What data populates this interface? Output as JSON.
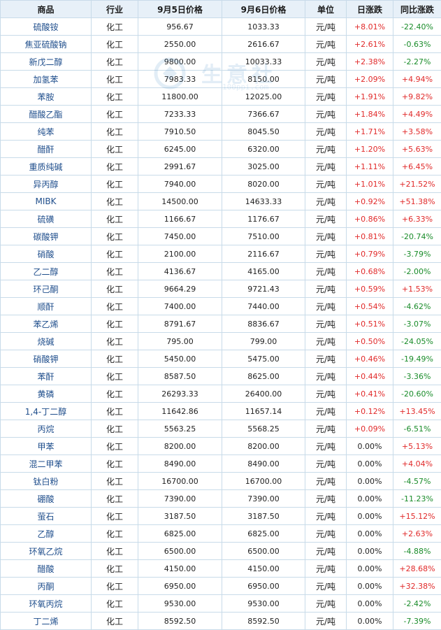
{
  "headers": [
    "商品",
    "行业",
    "9月5日价格",
    "9月6日价格",
    "单位",
    "日涨跌",
    "同比涨跌"
  ],
  "watermark": {
    "text": "生意社",
    "url": "100ppi.com"
  },
  "colors": {
    "up": "#e12a2a",
    "down": "#1a8c2a",
    "name": "#1f4e8c",
    "header_bg": "#e7f0f8"
  },
  "rows": [
    {
      "name": "硫酸铵",
      "industry": "化工",
      "p1": "956.67",
      "p2": "1033.33",
      "unit": "元/吨",
      "day": "+8.01%",
      "yoy": "-22.40%"
    },
    {
      "name": "焦亚硫酸钠",
      "industry": "化工",
      "p1": "2550.00",
      "p2": "2616.67",
      "unit": "元/吨",
      "day": "+2.61%",
      "yoy": "-0.63%"
    },
    {
      "name": "新戊二醇",
      "industry": "化工",
      "p1": "9800.00",
      "p2": "10033.33",
      "unit": "元/吨",
      "day": "+2.38%",
      "yoy": "-2.27%"
    },
    {
      "name": "加氢苯",
      "industry": "化工",
      "p1": "7983.33",
      "p2": "8150.00",
      "unit": "元/吨",
      "day": "+2.09%",
      "yoy": "+4.94%"
    },
    {
      "name": "苯胺",
      "industry": "化工",
      "p1": "11800.00",
      "p2": "12025.00",
      "unit": "元/吨",
      "day": "+1.91%",
      "yoy": "+9.82%"
    },
    {
      "name": "醋酸乙酯",
      "industry": "化工",
      "p1": "7233.33",
      "p2": "7366.67",
      "unit": "元/吨",
      "day": "+1.84%",
      "yoy": "+4.49%"
    },
    {
      "name": "纯苯",
      "industry": "化工",
      "p1": "7910.50",
      "p2": "8045.50",
      "unit": "元/吨",
      "day": "+1.71%",
      "yoy": "+3.58%"
    },
    {
      "name": "醋酐",
      "industry": "化工",
      "p1": "6245.00",
      "p2": "6320.00",
      "unit": "元/吨",
      "day": "+1.20%",
      "yoy": "+5.63%"
    },
    {
      "name": "重质纯碱",
      "industry": "化工",
      "p1": "2991.67",
      "p2": "3025.00",
      "unit": "元/吨",
      "day": "+1.11%",
      "yoy": "+6.45%"
    },
    {
      "name": "异丙醇",
      "industry": "化工",
      "p1": "7940.00",
      "p2": "8020.00",
      "unit": "元/吨",
      "day": "+1.01%",
      "yoy": "+21.52%"
    },
    {
      "name": "MIBK",
      "industry": "化工",
      "p1": "14500.00",
      "p2": "14633.33",
      "unit": "元/吨",
      "day": "+0.92%",
      "yoy": "+51.38%"
    },
    {
      "name": "硫磺",
      "industry": "化工",
      "p1": "1166.67",
      "p2": "1176.67",
      "unit": "元/吨",
      "day": "+0.86%",
      "yoy": "+6.33%"
    },
    {
      "name": "碳酸钾",
      "industry": "化工",
      "p1": "7450.00",
      "p2": "7510.00",
      "unit": "元/吨",
      "day": "+0.81%",
      "yoy": "-20.74%"
    },
    {
      "name": "硝酸",
      "industry": "化工",
      "p1": "2100.00",
      "p2": "2116.67",
      "unit": "元/吨",
      "day": "+0.79%",
      "yoy": "-3.79%"
    },
    {
      "name": "乙二醇",
      "industry": "化工",
      "p1": "4136.67",
      "p2": "4165.00",
      "unit": "元/吨",
      "day": "+0.68%",
      "yoy": "-2.00%"
    },
    {
      "name": "环己酮",
      "industry": "化工",
      "p1": "9664.29",
      "p2": "9721.43",
      "unit": "元/吨",
      "day": "+0.59%",
      "yoy": "+1.53%"
    },
    {
      "name": "顺酐",
      "industry": "化工",
      "p1": "7400.00",
      "p2": "7440.00",
      "unit": "元/吨",
      "day": "+0.54%",
      "yoy": "-4.62%"
    },
    {
      "name": "苯乙烯",
      "industry": "化工",
      "p1": "8791.67",
      "p2": "8836.67",
      "unit": "元/吨",
      "day": "+0.51%",
      "yoy": "-3.07%"
    },
    {
      "name": "烧碱",
      "industry": "化工",
      "p1": "795.00",
      "p2": "799.00",
      "unit": "元/吨",
      "day": "+0.50%",
      "yoy": "-24.05%"
    },
    {
      "name": "硝酸钾",
      "industry": "化工",
      "p1": "5450.00",
      "p2": "5475.00",
      "unit": "元/吨",
      "day": "+0.46%",
      "yoy": "-19.49%"
    },
    {
      "name": "苯酐",
      "industry": "化工",
      "p1": "8587.50",
      "p2": "8625.00",
      "unit": "元/吨",
      "day": "+0.44%",
      "yoy": "-3.36%"
    },
    {
      "name": "黄磷",
      "industry": "化工",
      "p1": "26293.33",
      "p2": "26400.00",
      "unit": "元/吨",
      "day": "+0.41%",
      "yoy": "-20.60%"
    },
    {
      "name": "1,4-丁二醇",
      "industry": "化工",
      "p1": "11642.86",
      "p2": "11657.14",
      "unit": "元/吨",
      "day": "+0.12%",
      "yoy": "+13.45%"
    },
    {
      "name": "丙烷",
      "industry": "化工",
      "p1": "5563.25",
      "p2": "5568.25",
      "unit": "元/吨",
      "day": "+0.09%",
      "yoy": "-6.51%"
    },
    {
      "name": "甲苯",
      "industry": "化工",
      "p1": "8200.00",
      "p2": "8200.00",
      "unit": "元/吨",
      "day": "0.00%",
      "yoy": "+5.13%"
    },
    {
      "name": "混二甲苯",
      "industry": "化工",
      "p1": "8490.00",
      "p2": "8490.00",
      "unit": "元/吨",
      "day": "0.00%",
      "yoy": "+4.04%"
    },
    {
      "name": "钛白粉",
      "industry": "化工",
      "p1": "16700.00",
      "p2": "16700.00",
      "unit": "元/吨",
      "day": "0.00%",
      "yoy": "-4.57%"
    },
    {
      "name": "硼酸",
      "industry": "化工",
      "p1": "7390.00",
      "p2": "7390.00",
      "unit": "元/吨",
      "day": "0.00%",
      "yoy": "-11.23%"
    },
    {
      "name": "萤石",
      "industry": "化工",
      "p1": "3187.50",
      "p2": "3187.50",
      "unit": "元/吨",
      "day": "0.00%",
      "yoy": "+15.12%"
    },
    {
      "name": "乙醇",
      "industry": "化工",
      "p1": "6825.00",
      "p2": "6825.00",
      "unit": "元/吨",
      "day": "0.00%",
      "yoy": "+2.63%"
    },
    {
      "name": "环氧乙烷",
      "industry": "化工",
      "p1": "6500.00",
      "p2": "6500.00",
      "unit": "元/吨",
      "day": "0.00%",
      "yoy": "-4.88%"
    },
    {
      "name": "醋酸",
      "industry": "化工",
      "p1": "4150.00",
      "p2": "4150.00",
      "unit": "元/吨",
      "day": "0.00%",
      "yoy": "+28.68%"
    },
    {
      "name": "丙酮",
      "industry": "化工",
      "p1": "6950.00",
      "p2": "6950.00",
      "unit": "元/吨",
      "day": "0.00%",
      "yoy": "+32.38%"
    },
    {
      "name": "环氧丙烷",
      "industry": "化工",
      "p1": "9530.00",
      "p2": "9530.00",
      "unit": "元/吨",
      "day": "0.00%",
      "yoy": "-2.42%"
    },
    {
      "name": "丁二烯",
      "industry": "化工",
      "p1": "8592.50",
      "p2": "8592.50",
      "unit": "元/吨",
      "day": "0.00%",
      "yoy": "-7.39%"
    }
  ]
}
